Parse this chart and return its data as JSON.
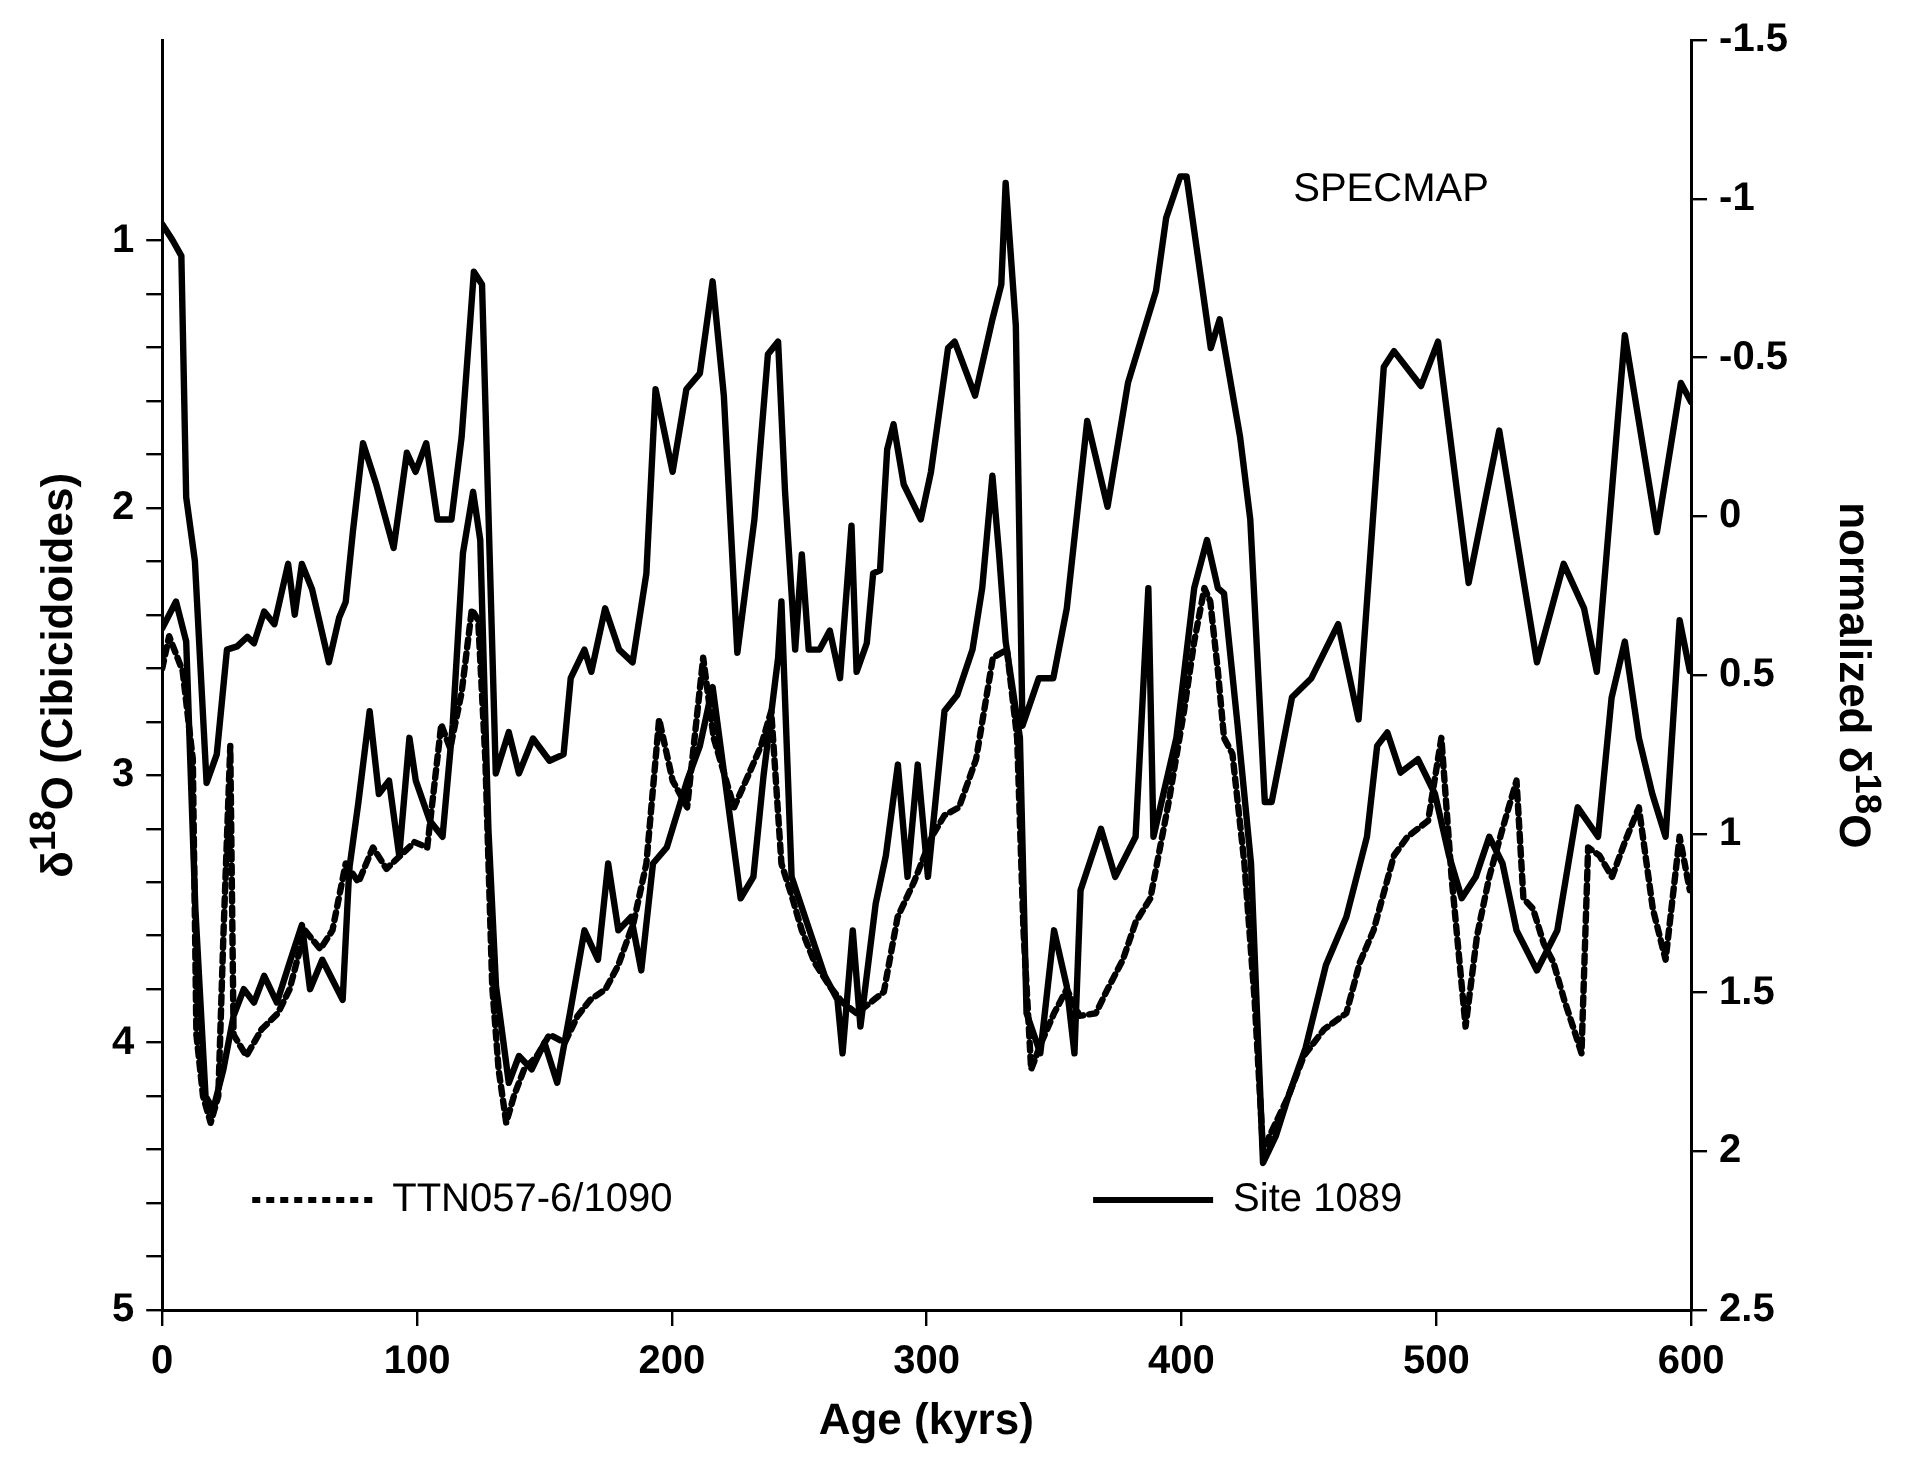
{
  "chart_data": {
    "type": "line",
    "xlabel": "Age (kyrs)",
    "ylabel": "δ$^{18}$O (Cibicidoides)",
    "y2label": "normalized δ$^{18}$O",
    "xlim": [
      0,
      600
    ],
    "xticks": [
      0,
      100,
      200,
      300,
      400,
      500,
      600
    ],
    "ylim": [
      5,
      0.25
    ],
    "yticks": [
      1,
      {
        "value": 1.2,
        "label": null
      },
      {
        "value": 1.4,
        "label": null
      },
      {
        "value": 1.6,
        "label": null
      },
      {
        "value": 1.8,
        "label": null
      },
      2,
      {
        "value": 2.2,
        "label": null
      },
      {
        "value": 2.4,
        "label": null
      },
      {
        "value": 2.6,
        "label": null
      },
      {
        "value": 2.8,
        "label": null
      },
      3,
      {
        "value": 3.2,
        "label": null
      },
      {
        "value": 3.4,
        "label": null
      },
      {
        "value": 3.6,
        "label": null
      },
      {
        "value": 3.8,
        "label": null
      },
      4,
      {
        "value": 4.2,
        "label": null
      },
      {
        "value": 4.4,
        "label": null
      },
      {
        "value": 4.6,
        "label": null
      },
      {
        "value": 4.8,
        "label": null
      },
      5
    ],
    "y2lim": [
      2.5,
      -1.5
    ],
    "y2ticks": [
      -1.5,
      -1,
      -0.5,
      0,
      0.5,
      1,
      1.5,
      2,
      2.5
    ],
    "grid": false,
    "legend": "bottom",
    "marker": "none",
    "series": [
      {
        "name": "SPECMAP",
        "color": "#000000",
        "axis": "y2",
        "line_style": "solid",
        "x": [
          0,
          4,
          7.5,
          9.4,
          12.8,
          17.4,
          21.4,
          25.4,
          29.4,
          33.4,
          36,
          40,
          44,
          49.4,
          52,
          54.8,
          58.8,
          65.4,
          69.4,
          72,
          74.8,
          78.8,
          84,
          90.8,
          96,
          99.4,
          103.6,
          108,
          113.5,
          117.5,
          122.3,
          125.5,
          130.9,
          136,
          140,
          145.5,
          152,
          157.5,
          160.3,
          165.7,
          168.4,
          173.8,
          179.3,
          184.6,
          190,
          193.6,
          200.3,
          205.7,
          211,
          216,
          220.4,
          225.7,
          232.4,
          237.7,
          241.7,
          244.4,
          248.4,
          251,
          253.7,
          258,
          262,
          266,
          270.5,
          272.5,
          276.5,
          279,
          281.7,
          284.5,
          287,
          291,
          297.7,
          301.7,
          308.4,
          311,
          319,
          325.8,
          329.3,
          331,
          335,
          337.6,
          344,
          349.7,
          355,
          363,
          371,
          379,
          390,
          394,
          399.5,
          402,
          411.5,
          415,
          423,
          427,
          432.7,
          435.4,
          443.4,
          451,
          461.5,
          469.5,
          479.4,
          483.4,
          494,
          500.7,
          512.7,
          524.7,
          539.5,
          550,
          558,
          563,
          574,
          586.6,
          596,
          600
        ],
        "values": [
          -0.92,
          -0.87,
          -0.82,
          -0.06,
          0.14,
          0.84,
          0.75,
          0.42,
          0.41,
          0.38,
          0.4,
          0.3,
          0.34,
          0.15,
          0.31,
          0.15,
          0.23,
          0.46,
          0.32,
          0.27,
          0.05,
          -0.23,
          -0.1,
          0.1,
          -0.2,
          -0.14,
          -0.23,
          0.01,
          0.01,
          -0.25,
          -0.77,
          -0.73,
          0.81,
          0.68,
          0.81,
          0.7,
          0.77,
          0.75,
          0.51,
          0.42,
          0.49,
          0.29,
          0.42,
          0.46,
          0.18,
          -0.4,
          -0.14,
          -0.4,
          -0.45,
          -0.74,
          -0.38,
          0.43,
          0.01,
          -0.51,
          -0.55,
          -0.08,
          0.42,
          0.12,
          0.42,
          0.42,
          0.36,
          0.51,
          0.03,
          0.49,
          0.4,
          0.18,
          0.17,
          -0.21,
          -0.29,
          -0.1,
          0.01,
          -0.14,
          -0.53,
          -0.55,
          -0.38,
          -0.62,
          -0.73,
          -1.05,
          -0.6,
          0.66,
          0.51,
          0.51,
          0.29,
          -0.3,
          -0.03,
          -0.42,
          -0.71,
          -0.94,
          -1.07,
          -1.07,
          -0.53,
          -0.62,
          -0.25,
          0.01,
          0.9,
          0.9,
          0.57,
          0.51,
          0.34,
          0.64,
          -0.47,
          -0.52,
          -0.41,
          -0.55,
          0.21,
          -0.27,
          0.46,
          0.15,
          0.29,
          0.49,
          -0.57,
          0.05,
          -0.42,
          -0.36
        ]
      },
      {
        "name": "TTN057-6/1090",
        "color": "#000000",
        "line_style": "dotted",
        "x": [
          0,
          2.7,
          8,
          12,
          13.4,
          16,
          19,
          22,
          24,
          26.7,
          28,
          33,
          39,
          45.4,
          50,
          56,
          62,
          66.8,
          72,
          77,
          82.7,
          88,
          93.5,
          99,
          104,
          109.5,
          113,
          117.5,
          121.5,
          124,
          126.8,
          129.5,
          132,
          135,
          138,
          142,
          147,
          152,
          158,
          163,
          168,
          174,
          179,
          185,
          190,
          195,
          200.3,
          206,
          212.3,
          216.4,
          224.4,
          230,
          235,
          239,
          243,
          247,
          251,
          256,
          262,
          267,
          272.5,
          278,
          283.2,
          288.6,
          295,
          302,
          307,
          312.7,
          319.4,
          326,
          331.5,
          335.5,
          338,
          341,
          345,
          350,
          355,
          360,
          366.4,
          371,
          377,
          382,
          387.8,
          395,
          401,
          405,
          409,
          411.3,
          414.3,
          416.7,
          420,
          424.7,
          428.7,
          432,
          437,
          442,
          448,
          456,
          464.7,
          470,
          475.4,
          483.4,
          488.7,
          496.8,
          502,
          506,
          511.5,
          516,
          520.8,
          526,
          531.5,
          534.2,
          538,
          542.2,
          546,
          550.2,
          554,
          557,
          559.6,
          564,
          569,
          574,
          579.5,
          585,
          590,
          595.5,
          599.5
        ],
        "values": [
          2.6,
          2.48,
          2.61,
          2.94,
          3.97,
          4.2,
          4.3,
          4.2,
          3.6,
          2.89,
          3.97,
          4.05,
          3.95,
          3.89,
          3.8,
          3.58,
          3.65,
          3.58,
          3.33,
          3.4,
          3.27,
          3.35,
          3.3,
          3.25,
          3.27,
          2.81,
          2.9,
          2.69,
          2.38,
          2.42,
          2.94,
          3.79,
          4.1,
          4.3,
          4.2,
          4.1,
          4.05,
          3.97,
          4.0,
          3.9,
          3.84,
          3.8,
          3.71,
          3.55,
          3.33,
          2.79,
          3.02,
          3.12,
          2.56,
          2.86,
          3.12,
          3.0,
          2.89,
          2.76,
          3.33,
          3.45,
          3.58,
          3.7,
          3.79,
          3.85,
          3.89,
          3.85,
          3.81,
          3.53,
          3.4,
          3.23,
          3.15,
          3.12,
          2.94,
          2.56,
          2.53,
          2.86,
          3.58,
          4.1,
          4.0,
          3.89,
          3.8,
          3.9,
          3.89,
          3.8,
          3.69,
          3.55,
          3.46,
          3.1,
          2.76,
          2.5,
          2.3,
          2.35,
          2.61,
          2.86,
          2.92,
          3.33,
          3.84,
          4.4,
          4.3,
          4.2,
          4.05,
          3.95,
          3.89,
          3.7,
          3.58,
          3.3,
          3.23,
          3.17,
          2.86,
          3.38,
          3.94,
          3.6,
          3.38,
          3.2,
          3.02,
          3.46,
          3.5,
          3.63,
          3.7,
          3.84,
          3.95,
          4.04,
          3.27,
          3.3,
          3.38,
          3.25,
          3.12,
          3.5,
          3.69,
          3.23,
          3.43
        ]
      },
      {
        "name": "Site 1089",
        "color": "#000000",
        "line_style": "solid",
        "x": [
          0,
          5.4,
          9.4,
          13,
          17,
          20,
          24,
          28,
          32,
          36,
          40,
          45,
          50,
          54.8,
          58,
          62.8,
          66,
          70.8,
          73.4,
          77,
          81.4,
          85,
          89,
          93,
          97,
          99.5,
          105,
          110,
          114,
          118,
          122,
          124.8,
          128,
          131,
          136,
          140,
          145,
          150,
          155,
          160,
          165.7,
          171,
          175,
          179,
          184,
          188,
          192.6,
          198,
          206,
          211,
          216,
          222,
          227,
          232,
          236,
          241.7,
          243,
          247,
          254,
          260,
          265,
          267,
          271,
          274,
          280,
          284,
          288.7,
          292.5,
          296.5,
          300.5,
          307,
          312,
          318,
          321.8,
          325.8,
          328.4,
          331,
          336.6,
          339.2,
          344.6,
          350,
          355,
          358,
          360.4,
          368.4,
          374,
          382,
          387,
          389,
          398,
          405,
          410,
          414.3,
          416.7,
          422,
          427.3,
          432,
          437,
          442,
          448.7,
          456.7,
          464.7,
          472.8,
          476.8,
          480.8,
          486,
          492.8,
          499.5,
          505,
          510,
          515.5,
          520.8,
          526,
          531.5,
          539.5,
          547.5,
          555.5,
          563.5,
          568.8,
          574,
          579.5,
          584.8,
          590,
          595.5,
          599.5
        ],
        "values": [
          2.45,
          2.35,
          2.5,
          3.5,
          4.2,
          4.25,
          4.1,
          3.9,
          3.8,
          3.85,
          3.75,
          3.85,
          3.7,
          3.56,
          3.8,
          3.69,
          3.75,
          3.84,
          3.35,
          3.1,
          2.76,
          3.07,
          3.02,
          3.3,
          2.86,
          3.02,
          3.17,
          3.23,
          2.81,
          2.17,
          1.94,
          2.12,
          3.2,
          3.79,
          4.15,
          4.05,
          4.1,
          4.0,
          4.15,
          3.89,
          3.58,
          3.69,
          3.33,
          3.58,
          3.53,
          3.73,
          3.33,
          3.27,
          3.02,
          2.89,
          2.67,
          3.1,
          3.46,
          3.38,
          3.0,
          2.56,
          2.35,
          3.38,
          3.58,
          3.75,
          3.84,
          4.04,
          3.58,
          3.94,
          3.48,
          3.3,
          2.96,
          3.38,
          2.96,
          3.38,
          2.76,
          2.7,
          2.53,
          2.3,
          1.88,
          2.17,
          2.5,
          2.86,
          3.89,
          4.04,
          3.58,
          3.79,
          4.04,
          3.43,
          3.2,
          3.38,
          3.23,
          2.3,
          3.23,
          2.86,
          2.3,
          2.12,
          2.3,
          2.32,
          2.81,
          3.33,
          4.45,
          4.35,
          4.2,
          4.02,
          3.71,
          3.53,
          3.23,
          2.89,
          2.84,
          2.99,
          2.94,
          3.07,
          3.3,
          3.46,
          3.38,
          3.23,
          3.33,
          3.58,
          3.73,
          3.58,
          3.12,
          3.23,
          2.71,
          2.5,
          2.86,
          3.07,
          3.23,
          2.42,
          2.61
        ]
      }
    ]
  }
}
